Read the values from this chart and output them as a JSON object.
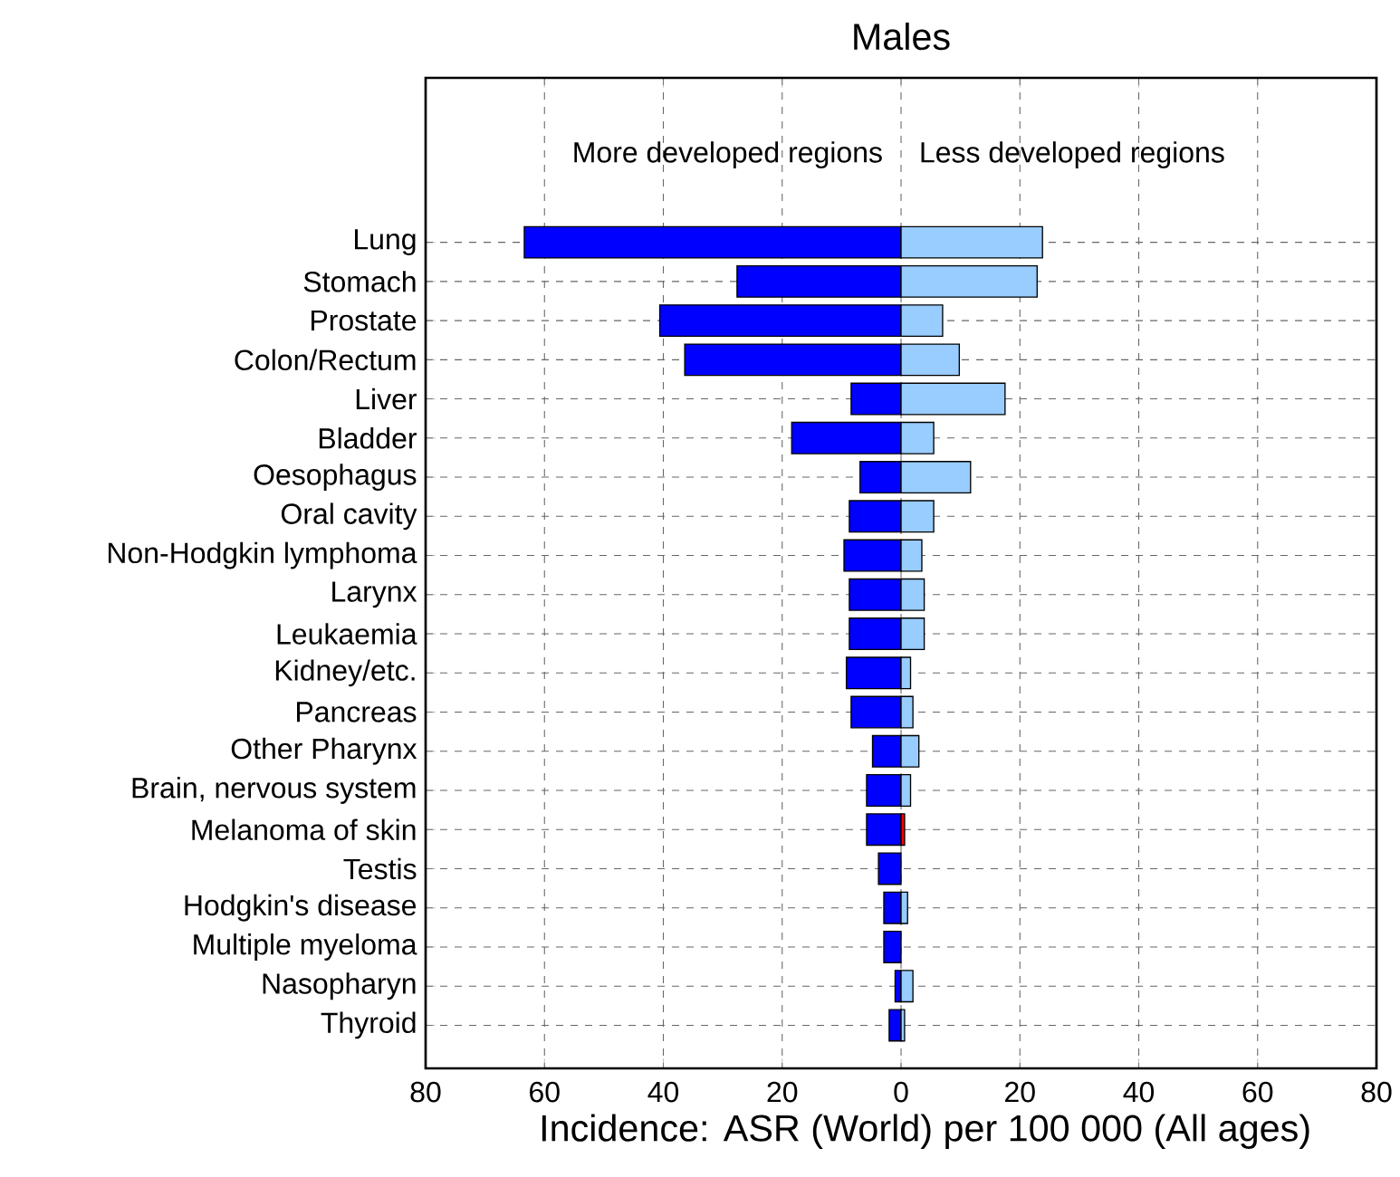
{
  "chart_data": {
    "type": "bar",
    "orientation": "horizontal",
    "title": "Males",
    "xlabel": "Incidence: ASR (World) per 100 000 (All ages)",
    "categories": [
      "Lung",
      "Stomach",
      "Prostate",
      "Colon/Rectum",
      "Liver",
      "Bladder",
      "Oesophagus",
      "Oral cavity",
      "Non-Hodgkin lymphoma",
      "Larynx",
      "Leukaemia",
      "Kidney/etc.",
      "Pancreas",
      "Other Pharynx",
      "Brain, nervous system",
      "Melanoma of skin",
      "Testis",
      "Hodgkin's disease",
      "Multiple myeloma",
      "Nasopharyn",
      "Thyroid"
    ],
    "series": [
      {
        "color": "#0000ff",
        "values": [
          -63.4,
          -27.6,
          -40.6,
          -36.4,
          -8.4,
          -18.4,
          -6.9,
          -8.7,
          -9.6,
          -8.7,
          -8.7,
          -9.2,
          -8.4,
          -4.8,
          -5.8,
          -5.8,
          -3.8,
          -2.9,
          -2.9,
          -1.0,
          -2.0
        ]
      },
      {
        "colors": [
          "#99ccff",
          "#99ccff",
          "#99ccff",
          "#99ccff",
          "#99ccff",
          "#99ccff",
          "#99ccff",
          "#99ccff",
          "#99ccff",
          "#99ccff",
          "#99ccff",
          "#99ccff",
          "#99ccff",
          "#99ccff",
          "#99ccff",
          "#ff0000",
          "#99ccff",
          "#99ccff",
          "#99ccff",
          "#99ccff",
          "#99ccff"
        ],
        "values": [
          23.8,
          22.9,
          7.0,
          9.8,
          17.5,
          5.5,
          11.7,
          5.5,
          3.5,
          3.9,
          3.9,
          1.6,
          2.0,
          3.0,
          1.6,
          0.6,
          null,
          1.1,
          null,
          2.0,
          0.6
        ]
      }
    ],
    "xlim": [
      -80,
      80
    ],
    "xticks": [
      {
        "value": -80,
        "label": "80"
      },
      {
        "value": -60,
        "label": "60"
      },
      {
        "value": -40,
        "label": "40"
      },
      {
        "value": -20,
        "label": "20"
      },
      0,
      20,
      40,
      60,
      80
    ],
    "annotations": [
      "More developed regions",
      "Less developed regions"
    ],
    "grid": true,
    "stacked": true
  }
}
